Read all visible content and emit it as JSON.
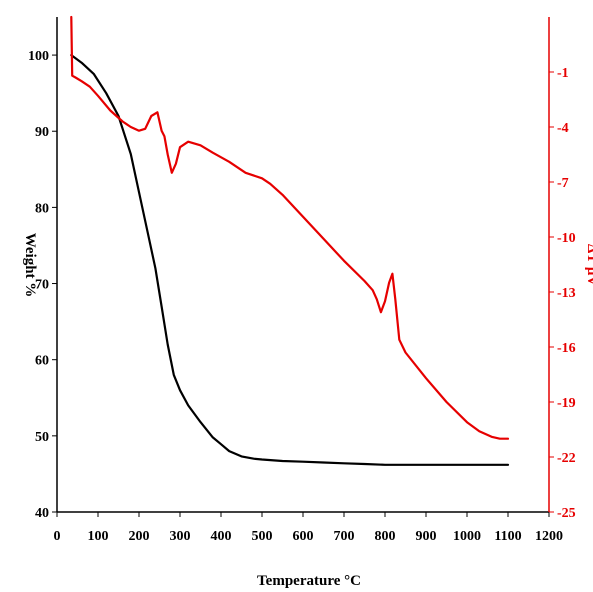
{
  "chart_data": {
    "type": "line",
    "xlabel": "Temperature °C",
    "ylabel_left": "Weight %",
    "ylabel_right": "ΔT µV",
    "xlim": [
      0,
      1200
    ],
    "ylim_left": [
      40,
      105
    ],
    "ylim_right": [
      -25,
      2
    ],
    "x_ticks": [
      "0",
      "100",
      "200",
      "300",
      "400",
      "500",
      "600",
      "700",
      "800",
      "900",
      "1000",
      "1100",
      "1200"
    ],
    "y_left_ticks": [
      "40",
      "50",
      "60",
      "70",
      "80",
      "90",
      "100"
    ],
    "y_right_ticks": [
      "-1",
      "-4",
      "-7",
      "-10",
      "-13",
      "-16",
      "-19",
      "-22",
      "-25"
    ],
    "grid": false,
    "colors": {
      "weight": "#000000",
      "dta": "#e60000"
    },
    "series": [
      {
        "axis": "left",
        "x": [
          35,
          60,
          90,
          120,
          150,
          180,
          200,
          220,
          240,
          255,
          270,
          285,
          300,
          320,
          350,
          380,
          400,
          420,
          450,
          480,
          500,
          550,
          600,
          650,
          700,
          750,
          800,
          850,
          900,
          950,
          1000,
          1050,
          1100
        ],
        "y": [
          100,
          99,
          97.5,
          95,
          92,
          87,
          82,
          77,
          72,
          67,
          62,
          58,
          56,
          54,
          51.8,
          49.8,
          48.9,
          48,
          47.3,
          47,
          46.9,
          46.7,
          46.6,
          46.5,
          46.4,
          46.3,
          46.2,
          46.2,
          46.2,
          46.2,
          46.2,
          46.2,
          46.2
        ]
      },
      {
        "axis": "right",
        "x": [
          35,
          37,
          45,
          60,
          80,
          100,
          130,
          160,
          180,
          200,
          215,
          230,
          245,
          255,
          262,
          270,
          280,
          290,
          300,
          320,
          350,
          380,
          420,
          460,
          500,
          520,
          550,
          600,
          650,
          700,
          750,
          770,
          780,
          790,
          800,
          810,
          818,
          825,
          835,
          850,
          900,
          950,
          1000,
          1030,
          1060,
          1080,
          1100
        ],
        "y": [
          2,
          -1.2,
          -1.3,
          -1.5,
          -1.8,
          -2.3,
          -3.1,
          -3.7,
          -4.0,
          -4.2,
          -4.1,
          -3.4,
          -3.2,
          -4.2,
          -4.5,
          -5.5,
          -6.5,
          -6.0,
          -5.1,
          -4.8,
          -5.0,
          -5.4,
          -5.9,
          -6.5,
          -6.8,
          -7.1,
          -7.7,
          -8.9,
          -10.1,
          -11.3,
          -12.4,
          -12.9,
          -13.4,
          -14.1,
          -13.5,
          -12.5,
          -12.0,
          -13.4,
          -15.6,
          -16.3,
          -17.7,
          -19.0,
          -20.1,
          -20.6,
          -20.9,
          -21.0,
          -21.0
        ]
      }
    ]
  }
}
